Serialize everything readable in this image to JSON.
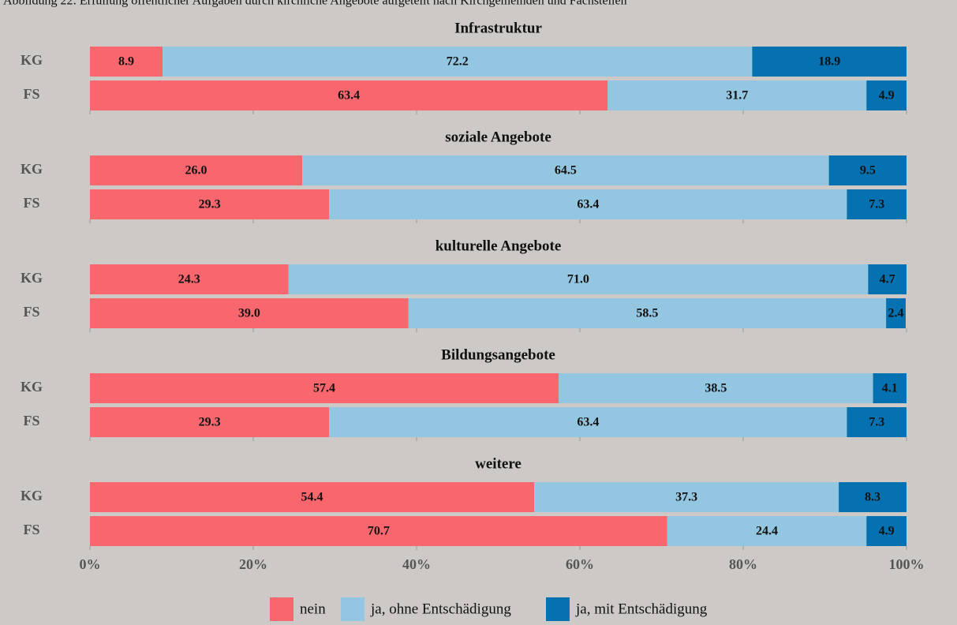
{
  "caption": "Abbildung 22: Erfüllung öffentlicher Aufgaben durch kirchliche Angebote aufgeteilt nach Kirchgemeinden und Fachstellen",
  "chart_data": [
    {
      "type": "bar",
      "orientation": "horizontal",
      "stacked": true,
      "title": "Infrastruktur",
      "categories": [
        "KG",
        "FS"
      ],
      "series": [
        {
          "name": "nein",
          "color": "#f8676e",
          "values": [
            8.9,
            63.4
          ],
          "value_labels": [
            "8.9",
            "63.4"
          ]
        },
        {
          "name": "ja, ohne Entschädigung",
          "color": "#93c6e0",
          "values": [
            72.2,
            31.7
          ],
          "value_labels": [
            "72.2",
            "31.7"
          ]
        },
        {
          "name": "ja, mit Entschädigung",
          "color": "#0571b0",
          "values": [
            18.9,
            4.9
          ],
          "value_labels": [
            "18.9",
            "4.9"
          ]
        }
      ],
      "xlim": [
        0,
        100
      ],
      "xticks": [
        {
          "value": 0,
          "label": "0%"
        },
        {
          "value": 20,
          "label": "20%"
        },
        {
          "value": 40,
          "label": "40%"
        },
        {
          "value": 60,
          "label": "60%"
        },
        {
          "value": 80,
          "label": "80%"
        },
        {
          "value": 100,
          "label": "100%"
        }
      ]
    },
    {
      "type": "bar",
      "orientation": "horizontal",
      "stacked": true,
      "title": "soziale Angebote",
      "categories": [
        "KG",
        "FS"
      ],
      "series": [
        {
          "name": "nein",
          "color": "#f8676e",
          "values": [
            26.0,
            29.3
          ],
          "value_labels": [
            "26.0",
            "29.3"
          ]
        },
        {
          "name": "ja, ohne Entschädigung",
          "color": "#93c6e0",
          "values": [
            64.5,
            63.4
          ],
          "value_labels": [
            "64.5",
            "63.4"
          ]
        },
        {
          "name": "ja, mit Entschädigung",
          "color": "#0571b0",
          "values": [
            9.5,
            7.3
          ],
          "value_labels": [
            "9.5",
            "7.3"
          ]
        }
      ],
      "xlim": [
        0,
        100
      ],
      "xticks": [
        {
          "value": 0,
          "label": "0%"
        },
        {
          "value": 20,
          "label": "20%"
        },
        {
          "value": 40,
          "label": "40%"
        },
        {
          "value": 60,
          "label": "60%"
        },
        {
          "value": 80,
          "label": "80%"
        },
        {
          "value": 100,
          "label": "100%"
        }
      ]
    },
    {
      "type": "bar",
      "orientation": "horizontal",
      "stacked": true,
      "title": "kulturelle Angebote",
      "categories": [
        "KG",
        "FS"
      ],
      "series": [
        {
          "name": "nein",
          "color": "#f8676e",
          "values": [
            24.3,
            39.0
          ],
          "value_labels": [
            "24.3",
            "39.0"
          ]
        },
        {
          "name": "ja, ohne Entschädigung",
          "color": "#93c6e0",
          "values": [
            71.0,
            58.5
          ],
          "value_labels": [
            "71.0",
            "58.5"
          ]
        },
        {
          "name": "ja, mit Entschädigung",
          "color": "#0571b0",
          "values": [
            4.7,
            2.4
          ],
          "value_labels": [
            "4.7",
            "2.4"
          ]
        }
      ],
      "xlim": [
        0,
        100
      ],
      "xticks": [
        {
          "value": 0,
          "label": "0%"
        },
        {
          "value": 20,
          "label": "20%"
        },
        {
          "value": 40,
          "label": "40%"
        },
        {
          "value": 60,
          "label": "60%"
        },
        {
          "value": 80,
          "label": "80%"
        },
        {
          "value": 100,
          "label": "100%"
        }
      ]
    },
    {
      "type": "bar",
      "orientation": "horizontal",
      "stacked": true,
      "title": "Bildungsangebote",
      "categories": [
        "KG",
        "FS"
      ],
      "series": [
        {
          "name": "nein",
          "color": "#f8676e",
          "values": [
            57.4,
            29.3
          ],
          "value_labels": [
            "57.4",
            "29.3"
          ]
        },
        {
          "name": "ja, ohne Entschädigung",
          "color": "#93c6e0",
          "values": [
            38.5,
            63.4
          ],
          "value_labels": [
            "38.5",
            "63.4"
          ]
        },
        {
          "name": "ja, mit Entschädigung",
          "color": "#0571b0",
          "values": [
            4.1,
            7.3
          ],
          "value_labels": [
            "4.1",
            "7.3"
          ]
        }
      ],
      "xlim": [
        0,
        100
      ],
      "xticks": [
        {
          "value": 0,
          "label": "0%"
        },
        {
          "value": 20,
          "label": "20%"
        },
        {
          "value": 40,
          "label": "40%"
        },
        {
          "value": 60,
          "label": "60%"
        },
        {
          "value": 80,
          "label": "80%"
        },
        {
          "value": 100,
          "label": "100%"
        }
      ]
    },
    {
      "type": "bar",
      "orientation": "horizontal",
      "stacked": true,
      "title": "weitere",
      "categories": [
        "KG",
        "FS"
      ],
      "series": [
        {
          "name": "nein",
          "color": "#f8676e",
          "values": [
            54.4,
            70.7
          ],
          "value_labels": [
            "54.4",
            "70.7"
          ]
        },
        {
          "name": "ja, ohne Entschädigung",
          "color": "#93c6e0",
          "values": [
            37.3,
            24.4
          ],
          "value_labels": [
            "37.3",
            "24.4"
          ]
        },
        {
          "name": "ja, mit Entschädigung",
          "color": "#0571b0",
          "values": [
            8.3,
            4.9
          ],
          "value_labels": [
            "8.3",
            "4.9"
          ]
        }
      ],
      "xlim": [
        0,
        100
      ],
      "xticks": [
        {
          "value": 0,
          "label": "0%"
        },
        {
          "value": 20,
          "label": "20%"
        },
        {
          "value": 40,
          "label": "40%"
        },
        {
          "value": 60,
          "label": "60%"
        },
        {
          "value": 80,
          "label": "80%"
        },
        {
          "value": 100,
          "label": "100%"
        }
      ]
    }
  ]
}
